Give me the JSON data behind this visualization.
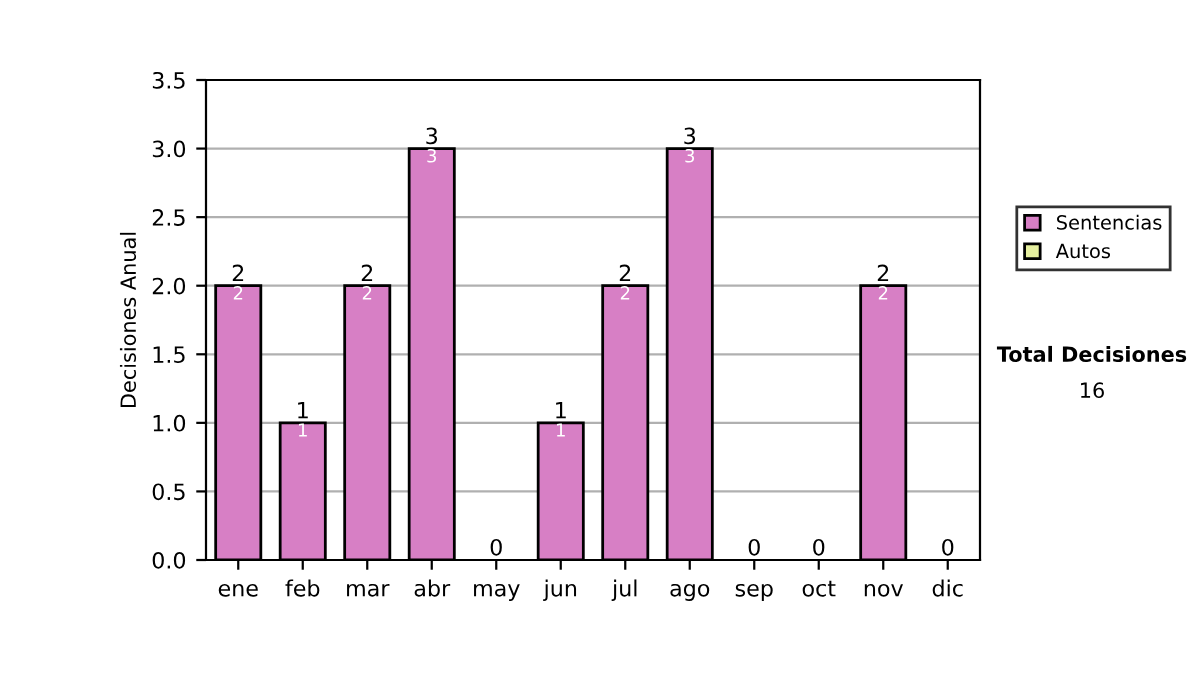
{
  "chart_data": {
    "type": "bar",
    "stacked": true,
    "categories": [
      "ene",
      "feb",
      "mar",
      "abr",
      "may",
      "jun",
      "jul",
      "ago",
      "sep",
      "oct",
      "nov",
      "dic"
    ],
    "series": [
      {
        "name": "Sentencias",
        "color": "#d77fc5",
        "values": [
          2,
          1,
          2,
          3,
          0,
          1,
          2,
          3,
          0,
          0,
          2,
          0
        ],
        "value_labels": [
          "2",
          "1",
          "2",
          "3",
          null,
          "1",
          "2",
          "3",
          null,
          null,
          "2",
          null
        ]
      },
      {
        "name": "Autos",
        "color": "#e6f0a0",
        "values": [
          0,
          0,
          0,
          0,
          0,
          0,
          0,
          0,
          0,
          0,
          0,
          0
        ]
      }
    ],
    "totals": [
      "2",
      "1",
      "2",
      "3",
      "0",
      "1",
      "2",
      "3",
      "0",
      "0",
      "2",
      "0"
    ],
    "ylabel": "Decisiones Anual",
    "ylim": [
      0,
      3.5
    ],
    "yticks": [
      "0.0",
      "0.5",
      "1.0",
      "1.5",
      "2.0",
      "2.5",
      "3.0",
      "3.5"
    ],
    "grid": "y",
    "legend": "right",
    "annotations": [
      "Total Decisiones",
      "16"
    ]
  }
}
